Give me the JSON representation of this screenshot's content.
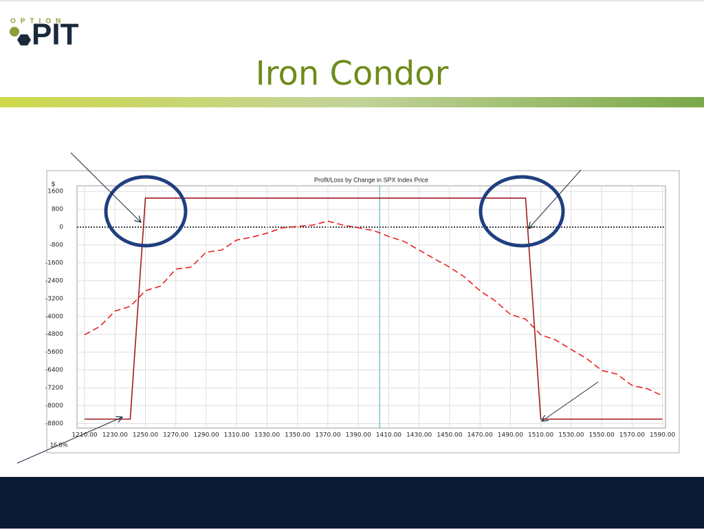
{
  "slide": {
    "title": "Iron Condor",
    "logo": {
      "top": "OPTION",
      "main": "PIT"
    }
  },
  "chart_data": {
    "type": "line",
    "title": "Profit/Loss by Change in SPX Index Price",
    "y_label": "$",
    "corner_label": "16.8%",
    "xlim": [
      1205,
      1592
    ],
    "ylim": [
      -9000,
      1850
    ],
    "xticks": [
      {
        "value": 1210,
        "label": "1210.00"
      },
      {
        "value": 1230,
        "label": "1230.00"
      },
      {
        "value": 1250,
        "label": "1250.00"
      },
      {
        "value": 1270,
        "label": "1270.00"
      },
      {
        "value": 1290,
        "label": "1290.00"
      },
      {
        "value": 1310,
        "label": "1310.00"
      },
      {
        "value": 1330,
        "label": "1330.00"
      },
      {
        "value": 1350,
        "label": "1350.00"
      },
      {
        "value": 1370,
        "label": "1370.00"
      },
      {
        "value": 1390,
        "label": "1390.00"
      },
      {
        "value": 1410,
        "label": "1410.00"
      },
      {
        "value": 1430,
        "label": "1430.00"
      },
      {
        "value": 1450,
        "label": "1450.00"
      },
      {
        "value": 1470,
        "label": "1470.00"
      },
      {
        "value": 1490,
        "label": "1490.00"
      },
      {
        "value": 1510,
        "label": "1510.00"
      },
      {
        "value": 1530,
        "label": "1530.00"
      },
      {
        "value": 1550,
        "label": "1550.00"
      },
      {
        "value": 1570,
        "label": "1570.00"
      },
      {
        "value": 1590,
        "label": "1590.00"
      }
    ],
    "yticks": [
      1600,
      800,
      0,
      -800,
      -1600,
      -2400,
      -3200,
      -4000,
      -4800,
      -5600,
      -6400,
      -7200,
      -8000,
      -8800
    ],
    "grid": true,
    "zero_line": true,
    "vline_x": 1404,
    "vline_color": "#3aa8b0",
    "series": [
      {
        "color": "#a0181c",
        "dash": false,
        "x": [
          1210,
          1240,
          1250,
          1500,
          1510,
          1590
        ],
        "values": [
          -8600,
          -8600,
          1300,
          1300,
          -8600,
          -8600
        ]
      },
      {
        "color": "#e82020",
        "dash": true,
        "x": [
          1210,
          1220,
          1230,
          1240,
          1250,
          1260,
          1270,
          1280,
          1290,
          1300,
          1310,
          1320,
          1330,
          1340,
          1350,
          1360,
          1370,
          1380,
          1390,
          1400,
          1410,
          1420,
          1430,
          1440,
          1450,
          1460,
          1470,
          1480,
          1490,
          1500,
          1510,
          1520,
          1530,
          1540,
          1550,
          1560,
          1570,
          1580,
          1590
        ],
        "values": [
          -4820,
          -4450,
          -3760,
          -3550,
          -2850,
          -2640,
          -1880,
          -1790,
          -1120,
          -1030,
          -580,
          -450,
          -270,
          -30,
          30,
          90,
          270,
          90,
          -30,
          -150,
          -420,
          -640,
          -1030,
          -1420,
          -1790,
          -2240,
          -2850,
          -3300,
          -3910,
          -4120,
          -4820,
          -5060,
          -5480,
          -5880,
          -6420,
          -6580,
          -7090,
          -7240,
          -7550
        ]
      }
    ]
  }
}
